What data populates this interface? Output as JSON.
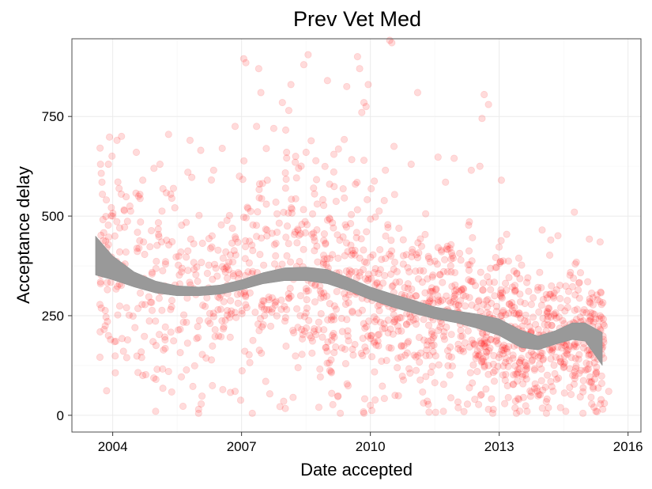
{
  "chart_data": {
    "type": "scatter",
    "title": "Prev Vet Med",
    "xlabel": "Date accepted",
    "ylabel": "Acceptance delay",
    "x_type": "year",
    "xlim": [
      2003.05,
      2016.3
    ],
    "ylim": [
      -42,
      945
    ],
    "x_ticks": [
      2004,
      2007,
      2010,
      2013,
      2016
    ],
    "x_tick_labels": [
      "2004",
      "2007",
      "2010",
      "2013",
      "2016"
    ],
    "y_ticks": [
      0,
      250,
      500,
      750
    ],
    "y_tick_labels": [
      "0",
      "250",
      "500",
      "750"
    ],
    "grid": true,
    "legend": "none",
    "colors": {
      "points": "#ff0000",
      "point_opacity": 0.14,
      "smooth_band": "#999999",
      "smooth_band_opacity": 1.0
    },
    "series": [
      {
        "kind": "points",
        "generator": {
          "note_points": "approximately 1500 jittered points following the smooth trend",
          "density_by_year": [
            [
              2003.7,
              60
            ],
            [
              2005,
              90
            ],
            [
              2007,
              100
            ],
            [
              2009,
              130
            ],
            [
              2011,
              150
            ],
            [
              2013,
              170
            ],
            [
              2015,
              190
            ]
          ]
        },
        "points": [
          [
            2003.75,
            585
          ],
          [
            2003.9,
            630
          ],
          [
            2004.1,
            690
          ],
          [
            2004.2,
            555
          ],
          [
            2004.55,
            660
          ],
          [
            2005.3,
            705
          ],
          [
            2005.8,
            690
          ],
          [
            2006.55,
            670
          ],
          [
            2006.85,
            725
          ],
          [
            2007.05,
            895
          ],
          [
            2007.1,
            885
          ],
          [
            2007.35,
            725
          ],
          [
            2007.4,
            870
          ],
          [
            2007.45,
            810
          ],
          [
            2007.75,
            720
          ],
          [
            2007.95,
            785
          ],
          [
            2008.1,
            765
          ],
          [
            2008.15,
            830
          ],
          [
            2008.45,
            880
          ],
          [
            2008.55,
            905
          ],
          [
            2009.0,
            840
          ],
          [
            2009.45,
            825
          ],
          [
            2009.7,
            900
          ],
          [
            2009.75,
            870
          ],
          [
            2009.8,
            760
          ],
          [
            2009.85,
            785
          ],
          [
            2009.9,
            775
          ],
          [
            2009.95,
            830
          ],
          [
            2010.45,
            945
          ],
          [
            2010.5,
            935
          ],
          [
            2011.1,
            810
          ],
          [
            2012.65,
            805
          ],
          [
            2012.75,
            780
          ],
          [
            2012.6,
            745
          ],
          [
            2003.9,
            200
          ],
          [
            2003.95,
            190
          ],
          [
            2004.0,
            500
          ],
          [
            2004.05,
            450
          ],
          [
            2004.7,
            100
          ],
          [
            2005.0,
            10
          ],
          [
            2005.3,
            110
          ],
          [
            2006.0,
            15
          ],
          [
            2006.0,
            5
          ],
          [
            2006.85,
            60
          ],
          [
            2007.25,
            5
          ],
          [
            2008.2,
            45
          ],
          [
            2008.8,
            20
          ],
          [
            2009.1,
            55
          ],
          [
            2009.3,
            5
          ],
          [
            2009.85,
            5
          ],
          [
            2010.0,
            25
          ],
          [
            2011.7,
            10
          ],
          [
            2012.75,
            15
          ],
          [
            2012.85,
            5
          ],
          [
            2013.4,
            5
          ],
          [
            2013.65,
            10
          ],
          [
            2014.1,
            5
          ],
          [
            2014.55,
            10
          ],
          [
            2014.95,
            5
          ],
          [
            2015.25,
            10
          ],
          [
            2015.45,
            30
          ],
          [
            2015.55,
            60
          ],
          [
            2014.75,
            510
          ],
          [
            2015.35,
            435
          ],
          [
            2014.0,
            465
          ],
          [
            2014.2,
            440
          ],
          [
            2013.05,
            590
          ],
          [
            2012.35,
            615
          ],
          [
            2012.55,
            625
          ],
          [
            2011.95,
            645
          ],
          [
            2011.75,
            585
          ],
          [
            2010.95,
            630
          ],
          [
            2010.55,
            675
          ],
          [
            2010.35,
            615
          ],
          [
            2009.85,
            640
          ],
          [
            2009.65,
            580
          ],
          [
            2009.15,
            655
          ],
          [
            2009.05,
            580
          ],
          [
            2008.25,
            635
          ],
          [
            2008.05,
            660
          ],
          [
            2007.8,
            535
          ],
          [
            2007.6,
            590
          ],
          [
            2006.95,
            600
          ],
          [
            2006.35,
            615
          ],
          [
            2006.05,
            665
          ],
          [
            2005.75,
            610
          ],
          [
            2005.35,
            555
          ],
          [
            2005.1,
            630
          ],
          [
            2004.7,
            590
          ],
          [
            2004.4,
            525
          ]
        ]
      },
      {
        "kind": "smooth",
        "method": "loess",
        "x": [
          2003.6,
          2004.0,
          2004.5,
          2005.0,
          2005.5,
          2006.0,
          2006.5,
          2007.0,
          2007.5,
          2008.0,
          2008.5,
          2009.0,
          2009.5,
          2010.0,
          2010.5,
          2011.0,
          2011.5,
          2012.0,
          2012.5,
          2013.0,
          2013.5,
          2013.9,
          2014.3,
          2014.7,
          2015.0,
          2015.4
        ],
        "y_low": [
          352,
          340,
          322,
          307,
          300,
          300,
          304,
          315,
          330,
          338,
          338,
          330,
          312,
          290,
          272,
          256,
          242,
          232,
          218,
          200,
          170,
          164,
          178,
          190,
          186,
          125
        ],
        "y_high": [
          450,
          400,
          360,
          337,
          325,
          322,
          327,
          340,
          358,
          370,
          372,
          366,
          345,
          322,
          305,
          289,
          272,
          262,
          254,
          242,
          214,
          199,
          212,
          232,
          232,
          208
        ]
      }
    ]
  }
}
